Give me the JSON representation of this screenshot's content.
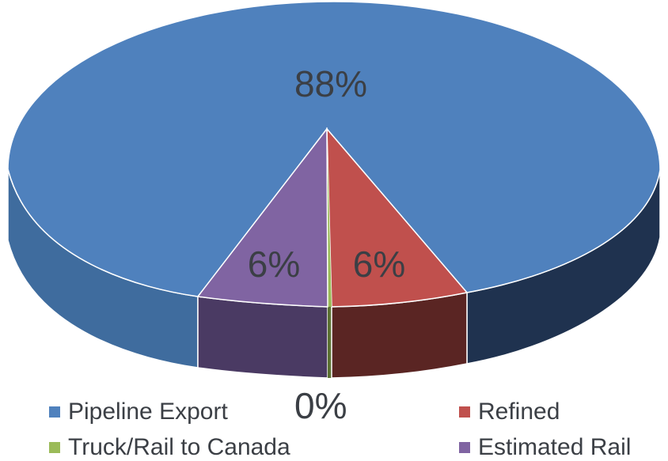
{
  "chart_data": {
    "type": "pie",
    "style": "3d",
    "categories": [
      "Pipeline Export",
      "Refined",
      "Truck/Rail to Canada",
      "Estimated Rail"
    ],
    "values": [
      88,
      6,
      0,
      6
    ],
    "data_labels": [
      "88%",
      "6%",
      "0%",
      "6%"
    ],
    "colors": [
      "#4f81bd",
      "#c0504d",
      "#9bbb59",
      "#8064a2"
    ],
    "legend_position": "bottom"
  }
}
